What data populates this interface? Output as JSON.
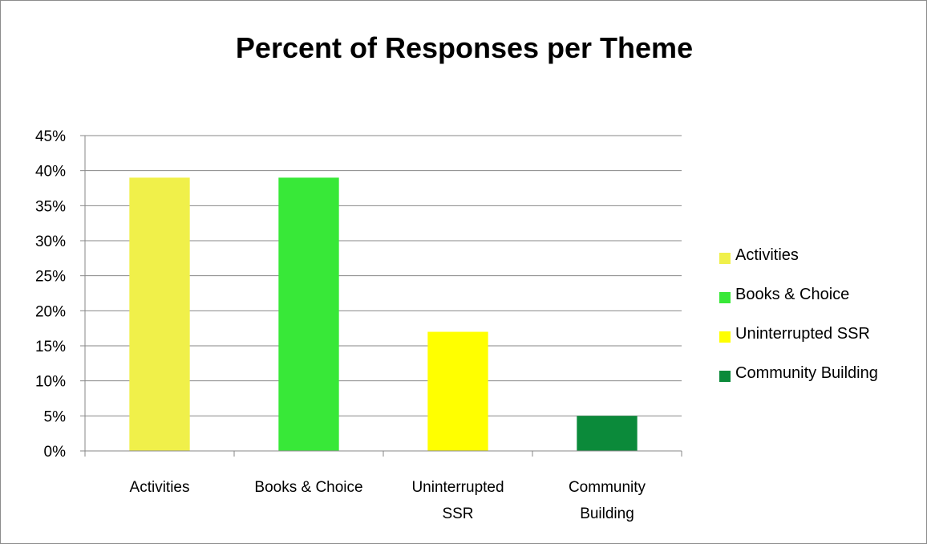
{
  "chart_data": {
    "type": "bar",
    "title": "Percent of Responses per Theme",
    "categories": [
      "Activities",
      "Books & Choice",
      "Uninterrupted SSR",
      "Community Building"
    ],
    "category_labels": [
      [
        "Activities"
      ],
      [
        "Books & Choice"
      ],
      [
        "Uninterrupted",
        "SSR"
      ],
      [
        "Community",
        "Building"
      ]
    ],
    "values": [
      39,
      39,
      17,
      5
    ],
    "colors": [
      "#f0f04a",
      "#38e838",
      "#ffff00",
      "#0b8a3a"
    ],
    "ylim": [
      0,
      45
    ],
    "yticks": [
      "0%",
      "5%",
      "10%",
      "15%",
      "20%",
      "25%",
      "30%",
      "35%",
      "40%",
      "45%"
    ],
    "grid": true,
    "legend": {
      "position": "right",
      "entries": [
        "Activities",
        "Books & Choice",
        "Uninterrupted SSR",
        "Community Building"
      ]
    }
  }
}
